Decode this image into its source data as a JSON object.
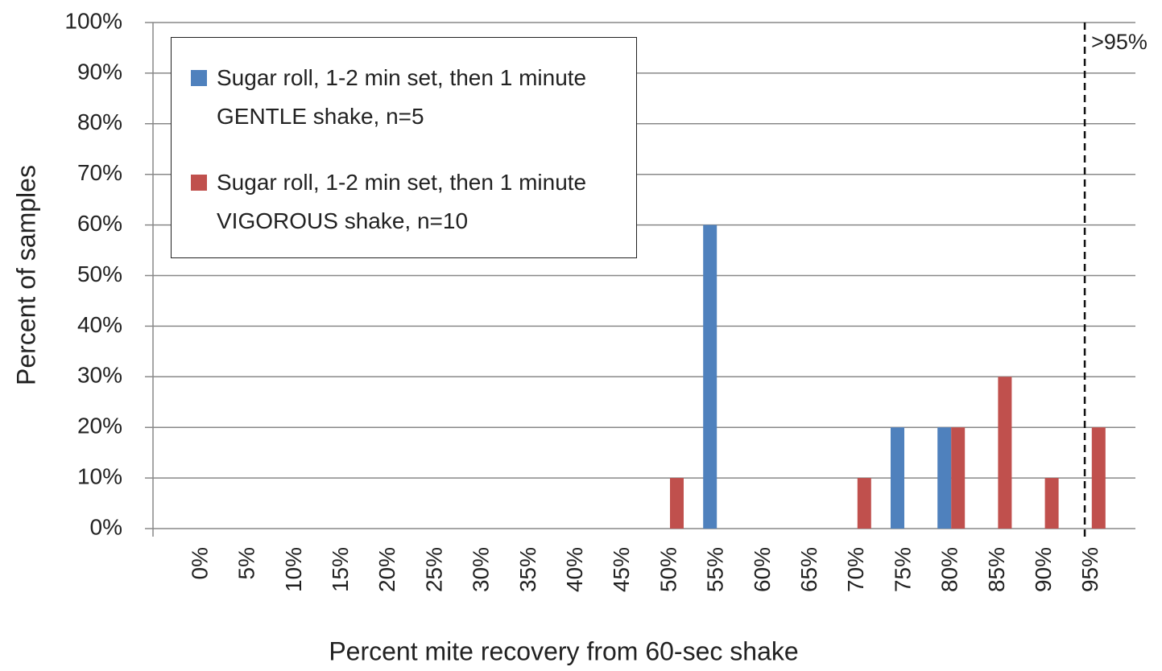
{
  "chart_data": {
    "type": "bar",
    "x_label": "Percent mite recovery from  60-sec shake",
    "y_label": "Percent of samples",
    "annotation": ">95%",
    "categories": [
      "0%",
      "5%",
      "10%",
      "15%",
      "20%",
      "25%",
      "30%",
      "35%",
      "40%",
      "45%",
      "50%",
      "55%",
      "60%",
      "65%",
      "70%",
      "75%",
      "80%",
      "85%",
      "90%",
      "95%"
    ],
    "series": [
      {
        "name": "Sugar roll, 1-2 min set, then 1 minute GENTLE shake, n=5",
        "color": "#4f81bd",
        "values": [
          0,
          0,
          0,
          0,
          0,
          0,
          0,
          0,
          0,
          0,
          0,
          60,
          0,
          0,
          0,
          20,
          20,
          0,
          0,
          0
        ]
      },
      {
        "name": "Sugar roll, 1-2 min set, then 1 minute VIGOROUS shake, n=10",
        "color": "#c0504d",
        "values": [
          0,
          0,
          0,
          0,
          0,
          0,
          0,
          0,
          0,
          0,
          10,
          0,
          0,
          0,
          10,
          0,
          20,
          30,
          10,
          20
        ]
      }
    ],
    "ylim": [
      0,
      100
    ],
    "yticks": [
      {
        "value": 0,
        "label": "0%"
      },
      {
        "value": 10,
        "label": "10%"
      },
      {
        "value": 20,
        "label": "20%"
      },
      {
        "value": 30,
        "label": "30%"
      },
      {
        "value": 40,
        "label": "40%"
      },
      {
        "value": 50,
        "label": "50%"
      },
      {
        "value": 60,
        "label": "60%"
      },
      {
        "value": 70,
        "label": "70%"
      },
      {
        "value": 80,
        "label": "80%"
      },
      {
        "value": 90,
        "label": "90%"
      },
      {
        "value": 100,
        "label": "100%"
      }
    ],
    "grid": true
  }
}
